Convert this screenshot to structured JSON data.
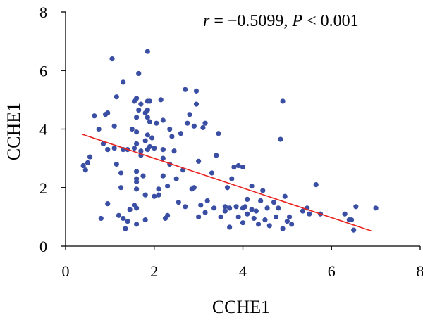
{
  "chart_data": {
    "type": "scatter",
    "xlabel": "CCHE1",
    "ylabel": "CCHE1",
    "xlim": [
      0,
      8
    ],
    "ylim": [
      0,
      8
    ],
    "x_ticks": [
      0,
      2,
      4,
      6,
      8
    ],
    "y_ticks": [
      0,
      2,
      4,
      6,
      8
    ],
    "grid": false,
    "annotation": {
      "r_symbol": "r",
      "r_text": " = −0.5099, ",
      "p_symbol": "P",
      "p_text": " < 0.001"
    },
    "fit_line": {
      "x": [
        0.38,
        6.9
      ],
      "y": [
        3.82,
        0.52
      ]
    },
    "points": [
      {
        "x": 0.4,
        "y": 2.75
      },
      {
        "x": 0.45,
        "y": 2.6
      },
      {
        "x": 0.5,
        "y": 2.85
      },
      {
        "x": 0.55,
        "y": 3.05
      },
      {
        "x": 0.65,
        "y": 4.45
      },
      {
        "x": 0.75,
        "y": 4.0
      },
      {
        "x": 0.8,
        "y": 0.95
      },
      {
        "x": 0.85,
        "y": 3.5
      },
      {
        "x": 0.9,
        "y": 4.5
      },
      {
        "x": 0.95,
        "y": 4.55
      },
      {
        "x": 0.95,
        "y": 3.3
      },
      {
        "x": 0.95,
        "y": 1.45
      },
      {
        "x": 1.05,
        "y": 6.4
      },
      {
        "x": 1.1,
        "y": 4.1
      },
      {
        "x": 1.1,
        "y": 3.35
      },
      {
        "x": 1.15,
        "y": 5.1
      },
      {
        "x": 1.15,
        "y": 2.8
      },
      {
        "x": 1.2,
        "y": 1.05
      },
      {
        "x": 1.25,
        "y": 2.5
      },
      {
        "x": 1.25,
        "y": 2.0
      },
      {
        "x": 1.3,
        "y": 5.6
      },
      {
        "x": 1.3,
        "y": 3.3
      },
      {
        "x": 1.3,
        "y": 0.95
      },
      {
        "x": 1.35,
        "y": 0.6
      },
      {
        "x": 1.4,
        "y": 3.3
      },
      {
        "x": 1.4,
        "y": 0.85
      },
      {
        "x": 1.45,
        "y": 1.25
      },
      {
        "x": 1.5,
        "y": 4.0
      },
      {
        "x": 1.55,
        "y": 4.95
      },
      {
        "x": 1.55,
        "y": 3.35
      },
      {
        "x": 1.55,
        "y": 1.4
      },
      {
        "x": 1.6,
        "y": 5.05
      },
      {
        "x": 1.6,
        "y": 4.4
      },
      {
        "x": 1.6,
        "y": 3.9
      },
      {
        "x": 1.6,
        "y": 3.5
      },
      {
        "x": 1.6,
        "y": 2.55
      },
      {
        "x": 1.6,
        "y": 2.3
      },
      {
        "x": 1.6,
        "y": 2.2
      },
      {
        "x": 1.6,
        "y": 1.95
      },
      {
        "x": 1.6,
        "y": 1.3
      },
      {
        "x": 1.6,
        "y": 0.75
      },
      {
        "x": 1.65,
        "y": 5.9
      },
      {
        "x": 1.65,
        "y": 4.65
      },
      {
        "x": 1.7,
        "y": 4.85
      },
      {
        "x": 1.7,
        "y": 3.25
      },
      {
        "x": 1.7,
        "y": 3.1
      },
      {
        "x": 1.75,
        "y": 2.4
      },
      {
        "x": 1.8,
        "y": 4.55
      },
      {
        "x": 1.8,
        "y": 3.6
      },
      {
        "x": 1.8,
        "y": 1.75
      },
      {
        "x": 1.8,
        "y": 0.9
      },
      {
        "x": 1.85,
        "y": 6.65
      },
      {
        "x": 1.85,
        "y": 4.95
      },
      {
        "x": 1.85,
        "y": 4.65
      },
      {
        "x": 1.85,
        "y": 4.4
      },
      {
        "x": 1.85,
        "y": 3.8
      },
      {
        "x": 1.85,
        "y": 3.3
      },
      {
        "x": 1.9,
        "y": 4.95
      },
      {
        "x": 1.9,
        "y": 4.25
      },
      {
        "x": 1.9,
        "y": 3.4
      },
      {
        "x": 1.95,
        "y": 3.7
      },
      {
        "x": 2.0,
        "y": 3.35
      },
      {
        "x": 2.0,
        "y": 1.7
      },
      {
        "x": 2.05,
        "y": 4.2
      },
      {
        "x": 2.1,
        "y": 1.95
      },
      {
        "x": 2.1,
        "y": 1.75
      },
      {
        "x": 2.15,
        "y": 5.0
      },
      {
        "x": 2.2,
        "y": 4.3
      },
      {
        "x": 2.2,
        "y": 3.3
      },
      {
        "x": 2.2,
        "y": 3.0
      },
      {
        "x": 2.2,
        "y": 2.4
      },
      {
        "x": 2.25,
        "y": 0.95
      },
      {
        "x": 2.3,
        "y": 1.05
      },
      {
        "x": 2.3,
        "y": 2.05
      },
      {
        "x": 2.35,
        "y": 4.0
      },
      {
        "x": 2.35,
        "y": 2.8
      },
      {
        "x": 2.4,
        "y": 3.75
      },
      {
        "x": 2.45,
        "y": 3.25
      },
      {
        "x": 2.5,
        "y": 2.3
      },
      {
        "x": 2.55,
        "y": 1.5
      },
      {
        "x": 2.6,
        "y": 3.85
      },
      {
        "x": 2.65,
        "y": 2.6
      },
      {
        "x": 2.7,
        "y": 1.35
      },
      {
        "x": 2.7,
        "y": 5.35
      },
      {
        "x": 2.75,
        "y": 4.2
      },
      {
        "x": 2.8,
        "y": 4.5
      },
      {
        "x": 2.85,
        "y": 1.95
      },
      {
        "x": 2.9,
        "y": 4.1
      },
      {
        "x": 2.9,
        "y": 2.0
      },
      {
        "x": 2.95,
        "y": 5.3
      },
      {
        "x": 2.95,
        "y": 4.85
      },
      {
        "x": 3.0,
        "y": 2.9
      },
      {
        "x": 3.0,
        "y": 1.0
      },
      {
        "x": 3.05,
        "y": 1.4
      },
      {
        "x": 3.1,
        "y": 4.05
      },
      {
        "x": 3.15,
        "y": 4.2
      },
      {
        "x": 3.15,
        "y": 1.15
      },
      {
        "x": 3.2,
        "y": 1.55
      },
      {
        "x": 3.3,
        "y": 2.5
      },
      {
        "x": 3.35,
        "y": 1.3
      },
      {
        "x": 3.4,
        "y": 3.1
      },
      {
        "x": 3.45,
        "y": 3.85
      },
      {
        "x": 3.5,
        "y": 1.0
      },
      {
        "x": 3.6,
        "y": 1.35
      },
      {
        "x": 3.6,
        "y": 1.2
      },
      {
        "x": 3.65,
        "y": 2.0
      },
      {
        "x": 3.7,
        "y": 0.65
      },
      {
        "x": 3.7,
        "y": 1.3
      },
      {
        "x": 3.75,
        "y": 2.3
      },
      {
        "x": 3.8,
        "y": 2.7
      },
      {
        "x": 3.85,
        "y": 1.35
      },
      {
        "x": 3.9,
        "y": 2.75
      },
      {
        "x": 3.9,
        "y": 1.0
      },
      {
        "x": 4.0,
        "y": 1.3
      },
      {
        "x": 4.0,
        "y": 0.8
      },
      {
        "x": 4.0,
        "y": 2.7
      },
      {
        "x": 4.05,
        "y": 1.35
      },
      {
        "x": 4.1,
        "y": 1.6
      },
      {
        "x": 4.1,
        "y": 1.1
      },
      {
        "x": 4.2,
        "y": 2.05
      },
      {
        "x": 4.2,
        "y": 1.25
      },
      {
        "x": 4.25,
        "y": 0.95
      },
      {
        "x": 4.3,
        "y": 1.2
      },
      {
        "x": 4.35,
        "y": 0.75
      },
      {
        "x": 4.4,
        "y": 1.55
      },
      {
        "x": 4.45,
        "y": 1.9
      },
      {
        "x": 4.5,
        "y": 0.9
      },
      {
        "x": 4.55,
        "y": 1.3
      },
      {
        "x": 4.6,
        "y": 0.7
      },
      {
        "x": 4.7,
        "y": 1.5
      },
      {
        "x": 4.75,
        "y": 1.0
      },
      {
        "x": 4.8,
        "y": 1.3
      },
      {
        "x": 4.85,
        "y": 3.65
      },
      {
        "x": 4.9,
        "y": 4.95
      },
      {
        "x": 4.9,
        "y": 0.6
      },
      {
        "x": 4.95,
        "y": 1.7
      },
      {
        "x": 5.0,
        "y": 0.85
      },
      {
        "x": 5.05,
        "y": 1.0
      },
      {
        "x": 5.1,
        "y": 0.75
      },
      {
        "x": 5.35,
        "y": 1.2
      },
      {
        "x": 5.45,
        "y": 1.3
      },
      {
        "x": 5.5,
        "y": 1.1
      },
      {
        "x": 5.65,
        "y": 2.1
      },
      {
        "x": 5.75,
        "y": 1.1
      },
      {
        "x": 6.3,
        "y": 1.1
      },
      {
        "x": 6.4,
        "y": 0.9
      },
      {
        "x": 6.45,
        "y": 0.9
      },
      {
        "x": 6.5,
        "y": 0.55
      },
      {
        "x": 6.55,
        "y": 1.35
      },
      {
        "x": 7.0,
        "y": 1.3
      }
    ]
  }
}
